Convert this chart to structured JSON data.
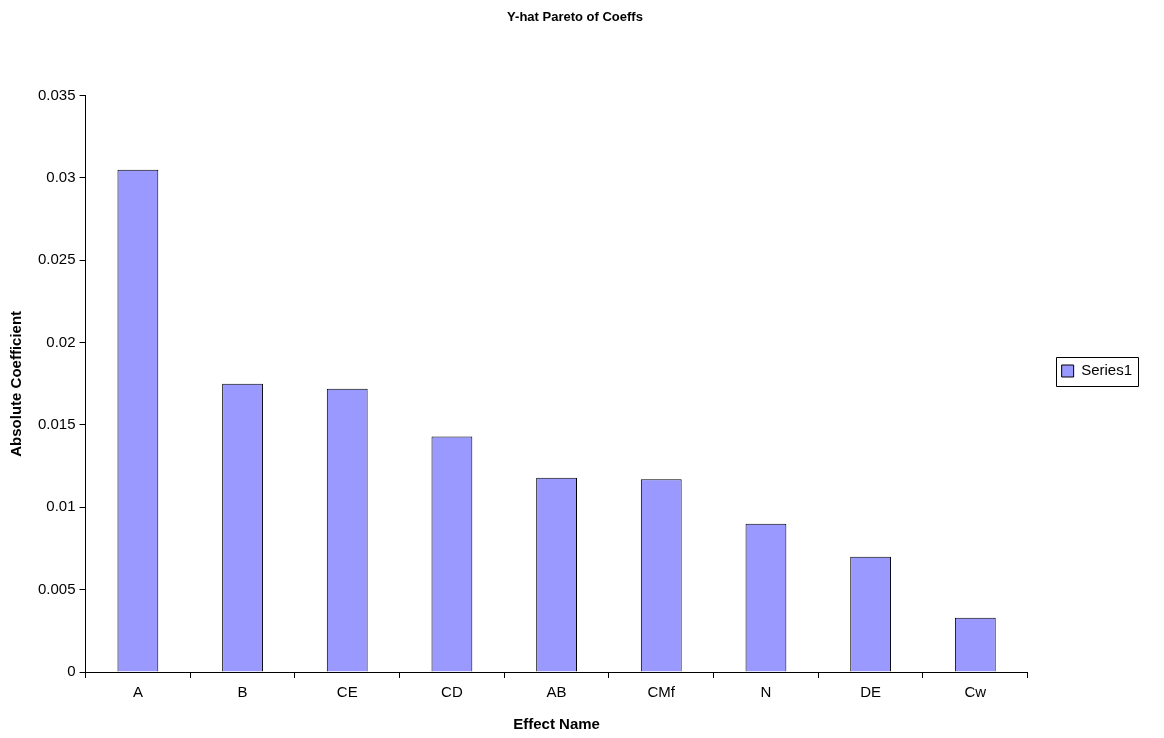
{
  "chart_data": {
    "type": "bar",
    "title": "Y-hat Pareto of Coeffs",
    "xlabel": "Effect Name",
    "ylabel": "Absolute Coefficient",
    "categories": [
      "A",
      "B",
      "CE",
      "CD",
      "AB",
      "CMf",
      "N",
      "DE",
      "Cw"
    ],
    "series": [
      {
        "name": "Series1",
        "color": "#9999ff",
        "values": [
          0.0305,
          0.0175,
          0.0172,
          0.0143,
          0.0118,
          0.0117,
          0.009,
          0.007,
          0.0033
        ]
      }
    ],
    "ylim": [
      0,
      0.035
    ],
    "yticks": [
      0,
      0.005,
      0.01,
      0.015,
      0.02,
      0.025,
      0.03,
      0.035
    ],
    "grid": false,
    "legend": "right"
  }
}
